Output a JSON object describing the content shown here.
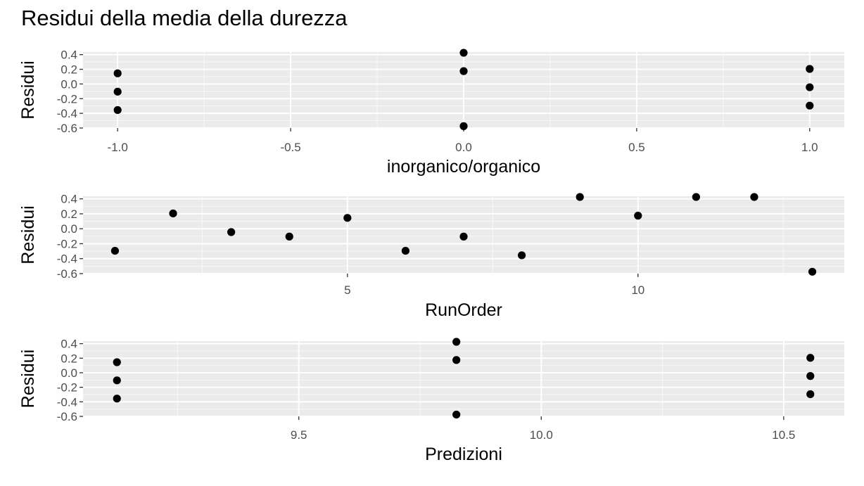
{
  "title": "Residui della media della durezza",
  "colors": {
    "panel": "#ebebeb",
    "grid_major": "#ffffff",
    "point": "#000000",
    "tick_text": "#4d4d4d",
    "label_text": "#000000"
  },
  "chart_data": [
    {
      "type": "scatter",
      "xlabel": "inorganico/organico",
      "ylabel": "Residui",
      "xlim": [
        -1.1,
        1.1
      ],
      "ylim": [
        -0.6,
        0.435
      ],
      "xticks": [
        -1.0,
        -0.5,
        0.0,
        0.5,
        1.0
      ],
      "xtick_labels": [
        "-1.0",
        "-0.5",
        "0.0",
        "0.5",
        "1.0"
      ],
      "yticks": [
        -0.6,
        -0.4,
        -0.2,
        0.0,
        0.2,
        0.4
      ],
      "ytick_labels": [
        "-0.6",
        "-0.4",
        "-0.2",
        "0.0",
        "0.2",
        "0.4"
      ],
      "grid": true,
      "x": [
        -1,
        -1,
        -1,
        0,
        0,
        0,
        1,
        1,
        1
      ],
      "y": [
        0.145,
        -0.105,
        -0.355,
        0.425,
        0.175,
        -0.575,
        0.205,
        -0.045,
        -0.295
      ]
    },
    {
      "type": "scatter",
      "xlabel": "RunOrder",
      "ylabel": "Residui",
      "xlim": [
        0.45,
        13.55
      ],
      "ylim": [
        -0.6,
        0.435
      ],
      "xticks": [
        5,
        10
      ],
      "xtick_labels": [
        "5",
        "10"
      ],
      "yticks": [
        -0.6,
        -0.4,
        -0.2,
        0.0,
        0.2,
        0.4
      ],
      "ytick_labels": [
        "-0.6",
        "-0.4",
        "-0.2",
        "0.0",
        "0.2",
        "0.4"
      ],
      "grid": true,
      "x": [
        1,
        2,
        3,
        4,
        5,
        6,
        7,
        8,
        9,
        10,
        11,
        12,
        13
      ],
      "y": [
        -0.295,
        0.205,
        -0.045,
        -0.105,
        0.145,
        -0.295,
        -0.105,
        -0.355,
        0.425,
        0.175,
        0.425,
        0.425,
        -0.575
      ]
    },
    {
      "type": "scatter",
      "xlabel": "Predizioni",
      "ylabel": "Residui",
      "xlim": [
        9.055,
        10.625
      ],
      "ylim": [
        -0.6,
        0.435
      ],
      "xticks": [
        9.5,
        10.0,
        10.5
      ],
      "xtick_labels": [
        "9.5",
        "10.0",
        "10.5"
      ],
      "yticks": [
        -0.6,
        -0.4,
        -0.2,
        0.0,
        0.2,
        0.4
      ],
      "ytick_labels": [
        "-0.6",
        "-0.4",
        "-0.2",
        "0.0",
        "0.2",
        "0.4"
      ],
      "grid": true,
      "x": [
        9.125,
        9.125,
        9.125,
        9.825,
        9.825,
        9.825,
        10.555,
        10.555,
        10.555
      ],
      "y": [
        0.145,
        -0.105,
        -0.355,
        0.425,
        0.175,
        -0.575,
        0.205,
        -0.045,
        -0.295
      ]
    }
  ]
}
